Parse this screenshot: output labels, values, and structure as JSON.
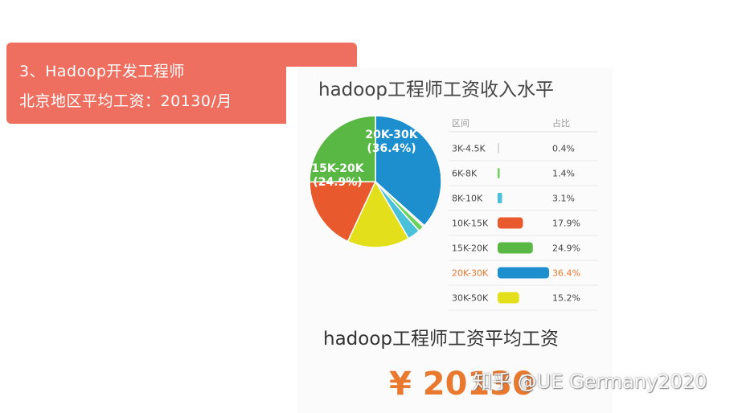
{
  "banner": {
    "line1": "3、Hadoop开发工程师",
    "line2": "北京地区平均工资：20130/月"
  },
  "chart_data": {
    "type": "pie",
    "title": "hadoop工程师工资收入水平",
    "table_headers": {
      "range": "区间",
      "share": "占比"
    },
    "categories": [
      "3K-4.5K",
      "6K-8K",
      "8K-10K",
      "10K-15K",
      "15K-20K",
      "20K-30K",
      "30K-50K"
    ],
    "values": [
      0.4,
      1.4,
      3.1,
      17.9,
      24.9,
      36.4,
      15.2
    ],
    "value_labels": [
      "0.4%",
      "1.4%",
      "3.1%",
      "17.9%",
      "24.9%",
      "36.4%",
      "15.2%"
    ],
    "colors": [
      "#d9d9d9",
      "#6cd35a",
      "#48c1d9",
      "#e85a2d",
      "#58b843",
      "#1d8fcf",
      "#e3df1b"
    ],
    "highlight_color": "#e8792f",
    "highlight_index": 5,
    "pie_labels": [
      {
        "index": 5,
        "range": "20K-30K",
        "pct": "(36.4%)"
      },
      {
        "index": 4,
        "range": "15K-20K",
        "pct": "(24.9%)"
      }
    ],
    "bar_scale_max": 36.4
  },
  "average": {
    "title": "hadoop工程师工资平均工资",
    "value": "¥ 20130"
  },
  "watermark": "知乎 @UE Germany2020"
}
